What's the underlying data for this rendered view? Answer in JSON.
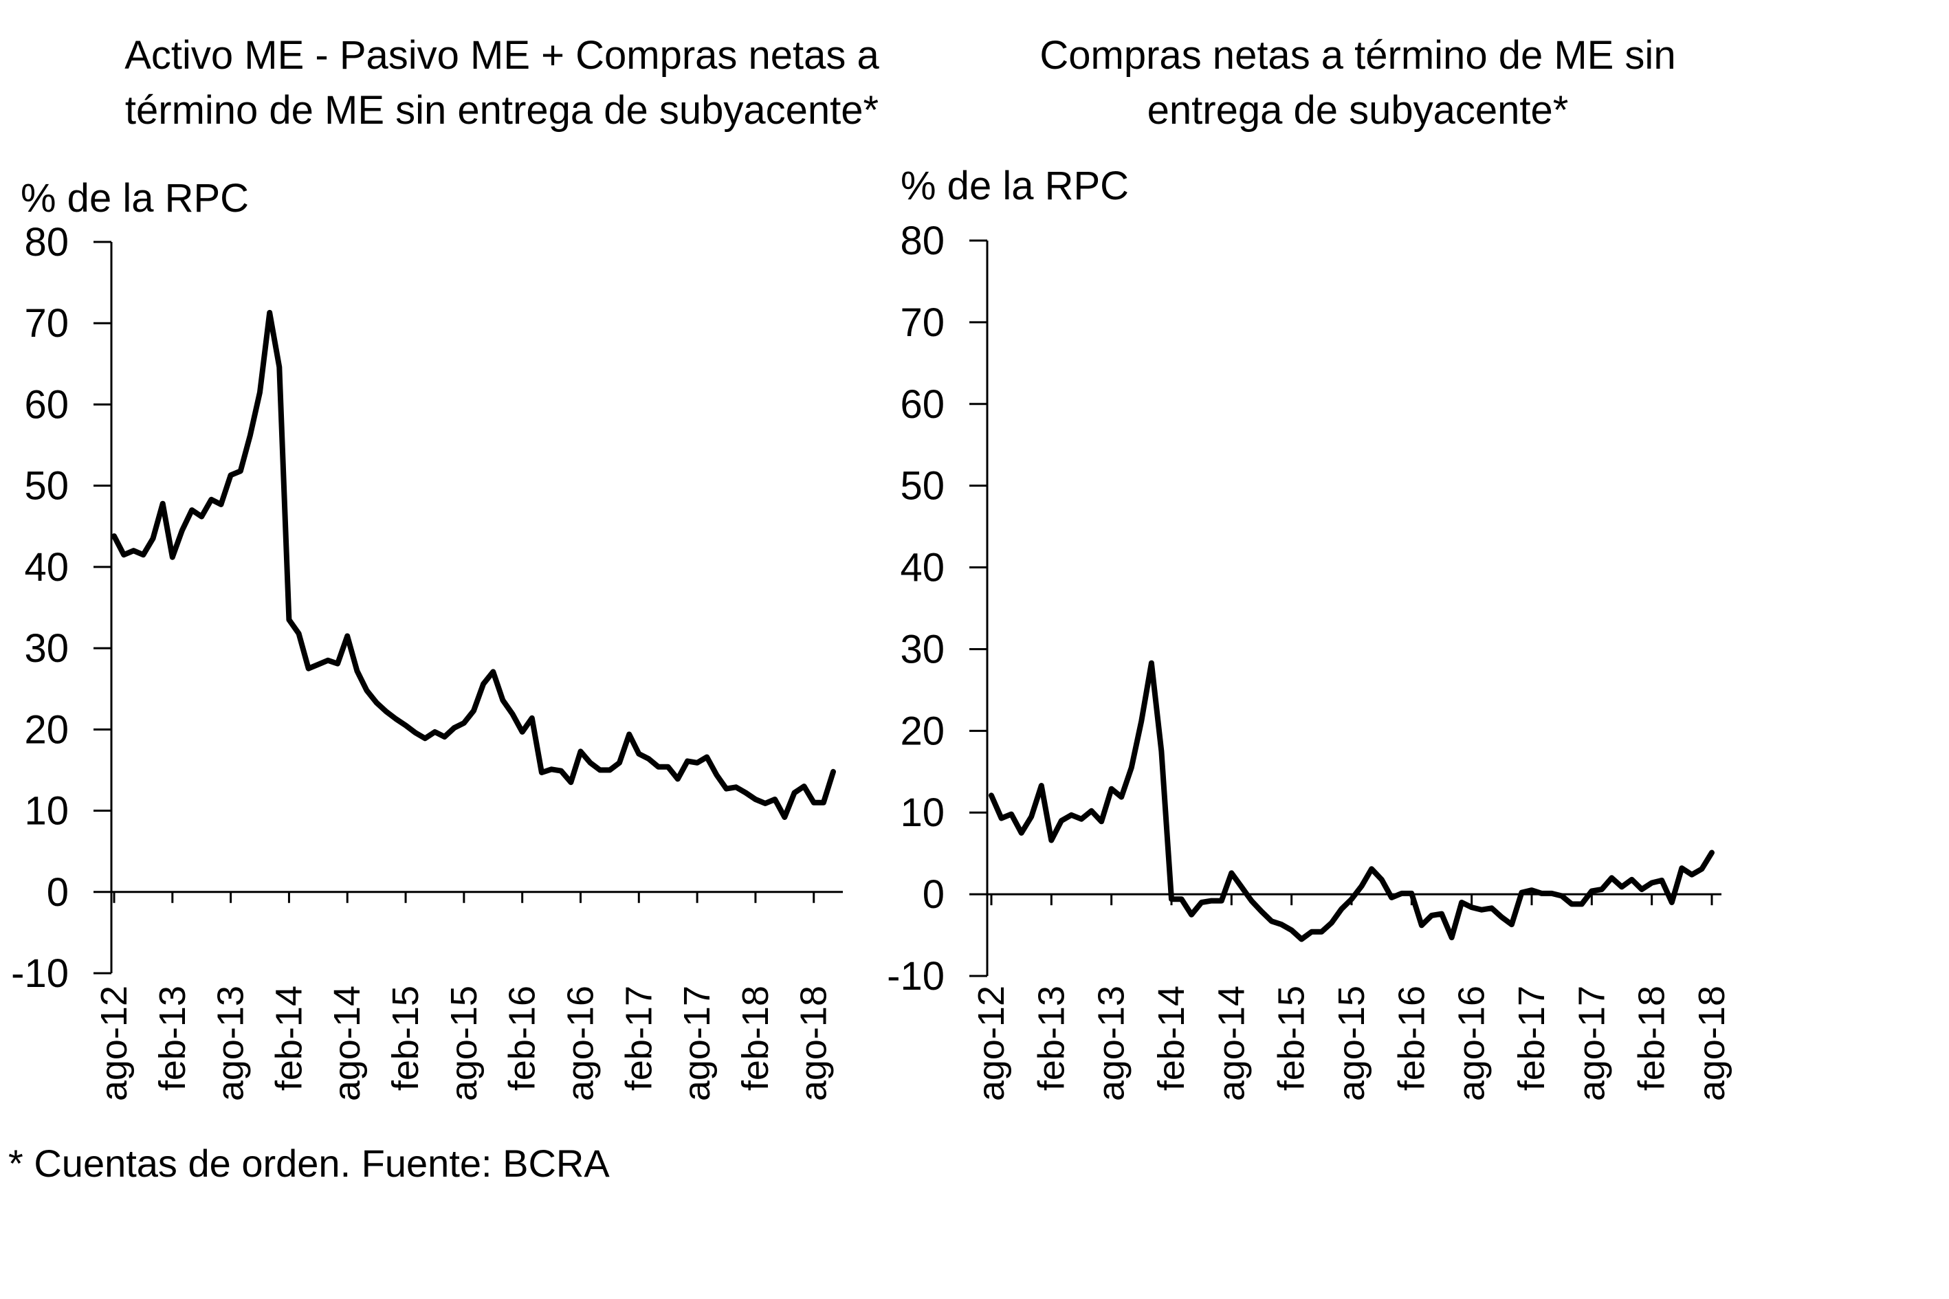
{
  "footnote": "* Cuentas de orden. Fuente: BCRA",
  "colors": {
    "line": "#000000",
    "axis": "#000000",
    "background": "#ffffff"
  },
  "chart_data": [
    {
      "type": "line",
      "title_lines": [
        "Activo ME - Pasivo ME + Compras netas a",
        "término de ME sin entrega de subyacente*"
      ],
      "unit_label": "% de la RPC",
      "ylim": [
        -10,
        80
      ],
      "yticks": [
        80,
        70,
        60,
        50,
        40,
        30,
        20,
        10,
        0,
        -10
      ],
      "x_labels": [
        "ago-12",
        "feb-13",
        "ago-13",
        "feb-14",
        "ago-14",
        "feb-15",
        "ago-15",
        "feb-16",
        "ago-16",
        "feb-17",
        "ago-17",
        "feb-18",
        "ago-18"
      ],
      "x_start": "ago-12",
      "x_end": "ago-18",
      "grid": false,
      "values": [
        43.8,
        41.5,
        42.0,
        41.5,
        43.5,
        47.8,
        41.2,
        44.5,
        47.0,
        46.2,
        48.3,
        47.7,
        51.3,
        51.8,
        56.2,
        61.5,
        71.3,
        64.6,
        33.5,
        31.8,
        27.5,
        28.0,
        28.5,
        28.1,
        31.5,
        27.2,
        24.8,
        23.3,
        22.2,
        21.3,
        20.5,
        19.6,
        18.9,
        19.7,
        19.1,
        20.2,
        20.8,
        22.3,
        25.6,
        27.1,
        23.6,
        21.9,
        19.7,
        21.4,
        14.7,
        15.1,
        14.9,
        13.5,
        17.3,
        15.9,
        15.0,
        15.0,
        15.9,
        19.4,
        17.0,
        16.4,
        15.4,
        15.4,
        13.9,
        16.1,
        15.9,
        16.6,
        14.4,
        12.7,
        12.9,
        12.2,
        11.4,
        10.9,
        11.4,
        9.2,
        12.2,
        13.0,
        11.0,
        11.0,
        14.8
      ]
    },
    {
      "type": "line",
      "title_lines": [
        "Compras netas a término de ME sin",
        "entrega de subyacente*"
      ],
      "unit_label": "% de la RPC",
      "ylim": [
        -10,
        80
      ],
      "yticks": [
        80,
        70,
        60,
        50,
        40,
        30,
        20,
        10,
        0,
        -10
      ],
      "x_labels": [
        "ago-12",
        "feb-13",
        "ago-13",
        "feb-14",
        "ago-14",
        "feb-15",
        "ago-15",
        "feb-16",
        "ago-16",
        "feb-17",
        "ago-17",
        "feb-18",
        "ago-18"
      ],
      "x_start": "ago-12",
      "x_end": "ago-18",
      "grid": false,
      "values": [
        12.1,
        9.3,
        9.8,
        7.5,
        9.5,
        13.3,
        6.6,
        9.0,
        9.7,
        9.2,
        10.2,
        8.9,
        12.9,
        11.9,
        15.5,
        21.2,
        28.3,
        17.5,
        -0.6,
        -0.6,
        -2.5,
        -1.0,
        -0.8,
        -0.8,
        2.6,
        0.9,
        -0.8,
        -2.1,
        -3.3,
        -3.7,
        -4.4,
        -5.5,
        -4.6,
        -4.6,
        -3.5,
        -1.8,
        -0.6,
        1.0,
        3.1,
        1.8,
        -0.4,
        0.1,
        0.1,
        -3.8,
        -2.6,
        -2.4,
        -5.3,
        -1.0,
        -1.6,
        -1.9,
        -1.7,
        -2.8,
        -3.7,
        0.2,
        0.5,
        0.1,
        0.1,
        -0.2,
        -1.2,
        -1.2,
        0.4,
        0.6,
        2.0,
        0.9,
        1.8,
        0.6,
        1.4,
        1.7,
        -1.0,
        3.2,
        2.4,
        3.1,
        5.1
      ]
    }
  ]
}
